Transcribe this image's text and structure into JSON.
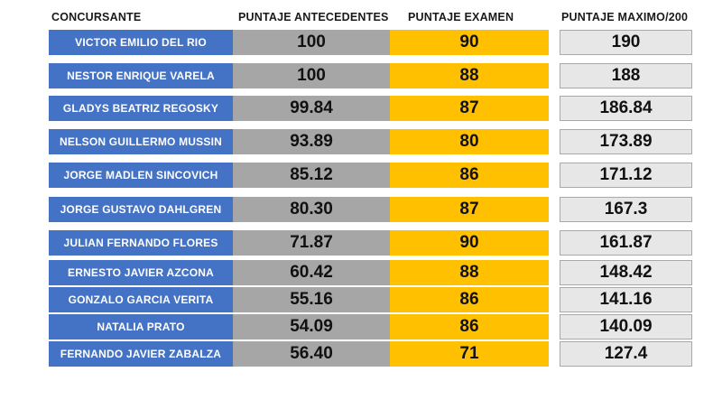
{
  "headers": {
    "concursante": "CONCURSANTE",
    "antecedentes": "PUNTAJE ANTECEDENTES",
    "examen": "PUNTAJE EXAMEN",
    "maximo": "PUNTAJE MAXIMO/200"
  },
  "colors": {
    "name_cell": "#4472c4",
    "antecedentes_cell": "#a6a6a6",
    "examen_cell": "#ffc000",
    "maximo_cell": "#e7e7e7"
  },
  "rows": [
    {
      "name": "VICTOR EMILIO DEL RIO",
      "antecedentes": "100",
      "examen": "90",
      "maximo": "190"
    },
    {
      "name": "NESTOR ENRIQUE VARELA",
      "antecedentes": "100",
      "examen": "88",
      "maximo": "188"
    },
    {
      "name": "GLADYS BEATRIZ REGOSKY",
      "antecedentes": "99.84",
      "examen": "87",
      "maximo": "186.84"
    },
    {
      "name": "NELSON GUILLERMO MUSSIN",
      "antecedentes": "93.89",
      "examen": "80",
      "maximo": "173.89"
    },
    {
      "name": "JORGE MADLEN SINCOVICH",
      "antecedentes": "85.12",
      "examen": "86",
      "maximo": "171.12"
    },
    {
      "name": "JORGE GUSTAVO DAHLGREN",
      "antecedentes": "80.30",
      "examen": "87",
      "maximo": "167.3"
    },
    {
      "name": "JULIAN FERNANDO FLORES",
      "antecedentes": "71.87",
      "examen": "90",
      "maximo": "161.87"
    },
    {
      "name": "ERNESTO JAVIER AZCONA",
      "antecedentes": "60.42",
      "examen": "88",
      "maximo": "148.42"
    },
    {
      "name": "GONZALO GARCIA VERITA",
      "antecedentes": "55.16",
      "examen": "86",
      "maximo": "141.16"
    },
    {
      "name": "NATALIA PRATO",
      "antecedentes": "54.09",
      "examen": "86",
      "maximo": "140.09"
    },
    {
      "name": "FERNANDO JAVIER ZABALZA",
      "antecedentes": "56.40",
      "examen": "71",
      "maximo": "127.4"
    }
  ]
}
